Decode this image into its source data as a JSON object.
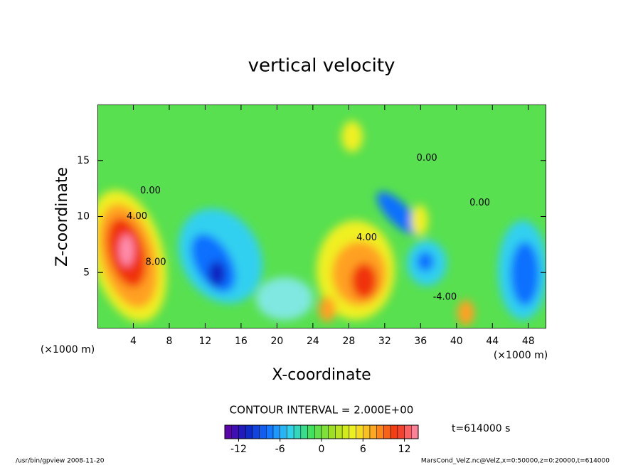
{
  "chart_data": {
    "type": "contour",
    "title": "vertical velocity",
    "x_label": "X-coordinate",
    "y_label": "Z-coordinate",
    "x_unit": "(×1000 m)",
    "xlim": [
      0,
      50
    ],
    "xticks": [
      4,
      8,
      12,
      16,
      20,
      24,
      28,
      32,
      36,
      40,
      44,
      48
    ],
    "ylim": [
      0,
      20
    ],
    "yticks": [
      5,
      10,
      15
    ],
    "contour_labels": [
      {
        "value": 4,
        "label": "4.00",
        "x": 4.4,
        "z": 10.0
      },
      {
        "value": 8,
        "label": "8.00",
        "x": 6.5,
        "z": 5.9
      },
      {
        "value": 0,
        "label": "0.00",
        "x": 5.9,
        "z": 12.3
      },
      {
        "value": 4,
        "label": "4.00",
        "x": 30.0,
        "z": 8.1
      },
      {
        "value": 0,
        "label": "0.00",
        "x": 36.7,
        "z": 15.2
      },
      {
        "value": -4,
        "label": "-4.00",
        "x": 38.7,
        "z": 2.8
      },
      {
        "value": 0,
        "label": "0.00",
        "x": 42.6,
        "z": 11.2
      }
    ],
    "contour_interval_label": "CONTOUR INTERVAL = 2.000E+00",
    "time_label": "t=614000 s",
    "colorbar": {
      "lim": [
        -14,
        14
      ],
      "ticks": [
        -12,
        -6,
        0,
        6,
        12
      ],
      "colors": [
        "#6a00a8",
        "#1020c0",
        "#1070ff",
        "#30d0f0",
        "#40e060",
        "#a0e020",
        "#f0f020",
        "#ffa020",
        "#f03010",
        "#ff90b0"
      ]
    },
    "footer_left": "/usr/bin/gpview   2008-11-20",
    "footer_right": "MarsCond_VelZ.nc@VelZ,x=0:50000,z=0:20000,t=614000"
  }
}
